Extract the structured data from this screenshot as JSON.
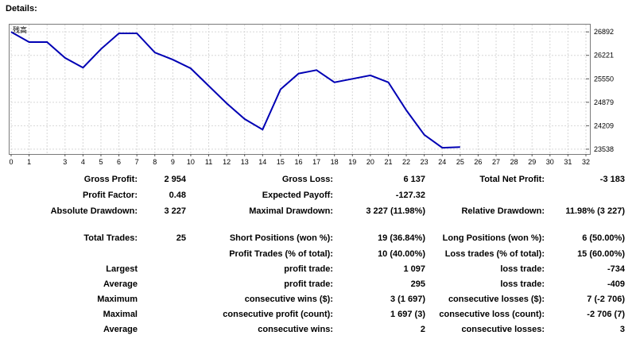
{
  "header": {
    "title": "Details:"
  },
  "chart_data": {
    "type": "line",
    "title": "",
    "legend_label": "残高",
    "xlabel": "",
    "ylabel": "",
    "x_ticks": [
      0,
      1,
      3,
      4,
      5,
      6,
      7,
      8,
      9,
      10,
      11,
      12,
      13,
      14,
      15,
      16,
      17,
      18,
      19,
      20,
      21,
      22,
      23,
      24,
      25,
      26,
      27,
      28,
      29,
      30,
      31,
      32
    ],
    "y_ticks": [
      23538,
      24209,
      24879,
      25550,
      26221,
      26892
    ],
    "xlim": [
      0,
      32
    ],
    "ylim": [
      23400,
      27100
    ],
    "color": "#0000b4",
    "series": [
      {
        "x": [
          0,
          1,
          2,
          3,
          4,
          5,
          6,
          7,
          8,
          9,
          10,
          11,
          12,
          13,
          14,
          15,
          16,
          17,
          18,
          19,
          20,
          21,
          22,
          23,
          24,
          25
        ],
        "values": [
          26892,
          26600,
          26600,
          26150,
          25870,
          26400,
          26850,
          26850,
          26300,
          26100,
          25850,
          25350,
          24850,
          24400,
          24100,
          25250,
          25700,
          25800,
          25450,
          25550,
          25650,
          25450,
          24650,
          23950,
          23580,
          23600
        ]
      }
    ]
  },
  "stats": {
    "rows": [
      [
        {
          "label": "Gross Profit:",
          "value": "2 954"
        },
        {
          "label": "Gross Loss:",
          "value": "6 137"
        },
        {
          "label": "Total Net Profit:",
          "value": "-3 183"
        }
      ],
      [
        {
          "label": "Profit Factor:",
          "value": "0.48"
        },
        {
          "label": "Expected Payoff:",
          "value": "-127.32"
        },
        {
          "label": "",
          "value": ""
        }
      ],
      [
        {
          "label": "Absolute Drawdown:",
          "value": "3 227"
        },
        {
          "label": "Maximal Drawdown:",
          "value": "3 227 (11.98%)"
        },
        {
          "label": "Relative Drawdown:",
          "value": "11.98% (3 227)"
        }
      ],
      [
        {
          "label": "Total Trades:",
          "value": "25"
        },
        {
          "label": "Short Positions (won %):",
          "value": "19 (36.84%)"
        },
        {
          "label": "Long Positions (won %):",
          "value": "6 (50.00%)"
        }
      ],
      [
        {
          "label": "",
          "value": ""
        },
        {
          "label": "Profit Trades (% of total):",
          "value": "10 (40.00%)"
        },
        {
          "label": "Loss trades (% of total):",
          "value": "15 (60.00%)"
        }
      ],
      [
        {
          "label": "Largest",
          "value": ""
        },
        {
          "label": "profit trade:",
          "value": "1 097"
        },
        {
          "label": "loss trade:",
          "value": "-734"
        }
      ],
      [
        {
          "label": "Average",
          "value": ""
        },
        {
          "label": "profit trade:",
          "value": "295"
        },
        {
          "label": "loss trade:",
          "value": "-409"
        }
      ],
      [
        {
          "label": "Maximum",
          "value": ""
        },
        {
          "label": "consecutive wins ($):",
          "value": "3 (1 697)"
        },
        {
          "label": "consecutive losses ($):",
          "value": "7 (-2 706)"
        }
      ],
      [
        {
          "label": "Maximal",
          "value": ""
        },
        {
          "label": "consecutive profit (count):",
          "value": "1 697 (3)"
        },
        {
          "label": "consecutive loss (count):",
          "value": "-2 706 (7)"
        }
      ],
      [
        {
          "label": "Average",
          "value": ""
        },
        {
          "label": "consecutive wins:",
          "value": "2"
        },
        {
          "label": "consecutive losses:",
          "value": "3"
        }
      ]
    ]
  }
}
